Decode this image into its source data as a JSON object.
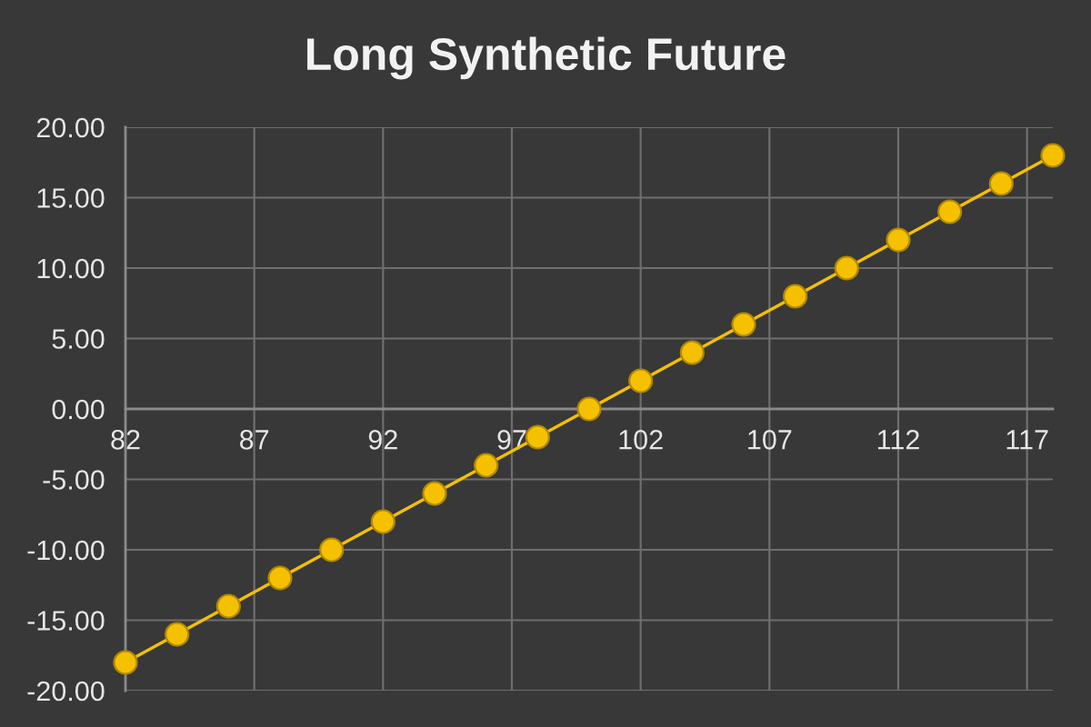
{
  "chart_data": {
    "type": "line",
    "title": "Long Synthetic Future",
    "x": [
      82,
      84,
      86,
      88,
      90,
      92,
      94,
      96,
      98,
      100,
      102,
      104,
      106,
      108,
      110,
      112,
      114,
      116,
      118
    ],
    "series": [
      {
        "color": "#f5c000",
        "values": [
          -18,
          -16,
          -14,
          -12,
          -10,
          -8,
          -6,
          -4,
          -2,
          0,
          2,
          4,
          6,
          8,
          10,
          12,
          14,
          16,
          18
        ]
      }
    ],
    "xlim": [
      82,
      118
    ],
    "xticks": [
      82,
      87,
      92,
      97,
      102,
      107,
      112,
      117
    ],
    "ylim": [
      -20,
      20
    ],
    "yticks": [
      {
        "value": -20,
        "label": "-20.00"
      },
      {
        "value": -15,
        "label": "-15.00"
      },
      {
        "value": -10,
        "label": "-10.00"
      },
      {
        "value": -5,
        "label": "-5.00"
      },
      {
        "value": 0,
        "label": "0.00"
      },
      {
        "value": 5,
        "label": "5.00"
      },
      {
        "value": 10,
        "label": "10.00"
      },
      {
        "value": 15,
        "label": "15.00"
      },
      {
        "value": 20,
        "label": "20.00"
      }
    ],
    "grid": true,
    "marker": "circle",
    "line_style": "solid"
  }
}
